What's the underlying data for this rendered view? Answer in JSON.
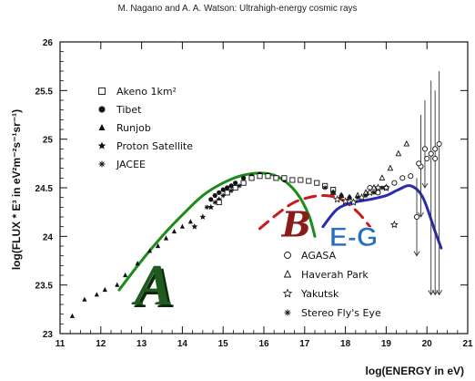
{
  "header": {
    "text": "M. Nagano and A. A. Watson:  Ultrahigh-energy cosmic rays"
  },
  "chart_data": {
    "type": "scatter",
    "xlabel": "log(ENERGY in eV)",
    "ylabel": "log(FLUX * E³ in eV²m⁻²s⁻¹sr⁻¹)",
    "xlim": [
      11,
      21
    ],
    "ylim": [
      23,
      26
    ],
    "x_ticks": [
      "11",
      "12",
      "13",
      "14",
      "15",
      "16",
      "17",
      "18",
      "19",
      "20",
      "21"
    ],
    "y_ticks": [
      "23",
      "23.5",
      "24",
      "24.5",
      "25",
      "25.5",
      "26"
    ],
    "legend_left": [
      {
        "label": "Akeno 1km²",
        "marker": "open-square"
      },
      {
        "label": "Tibet",
        "marker": "filled-circle"
      },
      {
        "label": "Runjob",
        "marker": "filled-triangle"
      },
      {
        "label": "Proton Satellite",
        "marker": "filled-star"
      },
      {
        "label": "JACEE",
        "marker": "asterisk"
      }
    ],
    "legend_right": [
      {
        "label": "AGASA",
        "marker": "open-circle"
      },
      {
        "label": "Haverah Park",
        "marker": "open-triangle"
      },
      {
        "label": "Yakutsk",
        "marker": "open-star"
      },
      {
        "label": "Stereo Fly's Eye",
        "marker": "asterisk"
      }
    ],
    "series": [
      {
        "name": "Runjob",
        "marker": "filled-triangle",
        "x": [
          11.3,
          11.6,
          11.9,
          12.1,
          12.4,
          12.6,
          12.9,
          13.2,
          13.4,
          13.6,
          13.8,
          14.0,
          14.2
        ],
        "y": [
          23.18,
          23.35,
          23.4,
          23.45,
          23.5,
          23.6,
          23.72,
          23.85,
          23.9,
          23.98,
          24.05,
          24.1,
          24.15
        ]
      },
      {
        "name": "Proton Satellite",
        "marker": "filled-star",
        "x": [
          14.3,
          14.5,
          14.7,
          14.9,
          15.1
        ],
        "y": [
          24.1,
          24.2,
          24.3,
          24.38,
          24.45
        ]
      },
      {
        "name": "Tibet",
        "marker": "filled-circle",
        "x": [
          14.7,
          14.8,
          14.9,
          15.0,
          15.1,
          15.2,
          15.3,
          15.5,
          15.7,
          15.9,
          16.1,
          16.3,
          16.5
        ],
        "y": [
          24.38,
          24.42,
          24.45,
          24.48,
          24.5,
          24.52,
          24.55,
          24.6,
          24.62,
          24.64,
          24.63,
          24.6,
          24.58
        ]
      },
      {
        "name": "Akeno 1km²",
        "marker": "open-square",
        "x": [
          14.9,
          15.1,
          15.3,
          15.5,
          15.7,
          15.9,
          16.1,
          16.3,
          16.5,
          16.7,
          16.9,
          17.1,
          17.3,
          17.5,
          17.7
        ],
        "y": [
          24.35,
          24.45,
          24.5,
          24.55,
          24.6,
          24.62,
          24.62,
          24.6,
          24.6,
          24.58,
          24.58,
          24.57,
          24.55,
          24.52,
          24.48
        ]
      },
      {
        "name": "JACEE",
        "marker": "asterisk",
        "x": [
          14.6,
          14.8,
          15.0,
          15.2,
          15.4
        ],
        "y": [
          24.3,
          24.35,
          24.42,
          24.47,
          24.52
        ]
      },
      {
        "name": "AGASA",
        "marker": "open-circle",
        "x": [
          18.6,
          18.8,
          19.0,
          19.2,
          19.4,
          19.6,
          19.8,
          20.0,
          20.2
        ],
        "y": [
          24.5,
          24.45,
          24.5,
          24.55,
          24.6,
          24.62,
          24.75,
          24.8,
          24.9
        ]
      },
      {
        "name": "Haverah Park",
        "marker": "open-triangle",
        "x": [
          17.7,
          17.9,
          18.1,
          18.3,
          18.5,
          18.7,
          18.9,
          19.1,
          19.3,
          19.5
        ],
        "y": [
          24.45,
          24.42,
          24.4,
          24.42,
          24.45,
          24.5,
          24.6,
          24.7,
          24.85,
          24.95
        ]
      },
      {
        "name": "Yakutsk",
        "marker": "open-star",
        "x": [
          17.8,
          18.0,
          18.2,
          18.4,
          18.6,
          18.8,
          19.0,
          19.2
        ],
        "y": [
          24.38,
          24.36,
          24.35,
          24.4,
          24.45,
          24.5,
          24.5,
          24.12
        ]
      },
      {
        "name": "Stereo Fly's Eye",
        "marker": "asterisk",
        "x": [
          17.5,
          17.7,
          17.9,
          18.1,
          18.3,
          18.5,
          18.7,
          18.9
        ],
        "y": [
          24.5,
          24.45,
          24.42,
          24.4,
          24.4,
          24.42,
          24.45,
          24.5
        ]
      }
    ],
    "curves": [
      {
        "color": "#1a8c1a",
        "style": "solid",
        "x": [
          12.45,
          13.0,
          13.5,
          14.0,
          14.5,
          15.0,
          15.5,
          16.0,
          16.4,
          16.8,
          17.1,
          17.25
        ],
        "y": [
          23.45,
          23.75,
          24.0,
          24.22,
          24.42,
          24.55,
          24.63,
          24.65,
          24.6,
          24.45,
          24.22,
          24.0
        ]
      },
      {
        "color": "#cc1a1a",
        "style": "dashed",
        "x": [
          15.9,
          16.3,
          16.7,
          17.1,
          17.5,
          17.9,
          18.3,
          18.6
        ],
        "y": [
          24.08,
          24.22,
          24.34,
          24.4,
          24.42,
          24.38,
          24.25,
          24.1
        ]
      },
      {
        "color": "#2b2bb0",
        "style": "solid",
        "x": [
          17.45,
          17.8,
          18.2,
          18.6,
          19.0,
          19.3,
          19.6,
          19.9,
          20.2,
          20.35
        ],
        "y": [
          24.1,
          24.28,
          24.35,
          24.38,
          24.42,
          24.48,
          24.52,
          24.4,
          24.05,
          23.88
        ]
      }
    ],
    "errorbars": [
      {
        "x": 19.85,
        "y": 24.72,
        "ymin": 24.2,
        "ymax": 25.25
      },
      {
        "x": 19.95,
        "y": 24.9,
        "ymin": 24.5,
        "ymax": 25.4
      },
      {
        "x": 20.1,
        "y": 24.85,
        "ymin": 23.4,
        "ymax": 25.6
      },
      {
        "x": 20.2,
        "y": 24.8,
        "ymin": 23.4,
        "ymax": 25.5
      },
      {
        "x": 20.3,
        "y": 24.95,
        "ymin": 23.4,
        "ymax": 25.7
      },
      {
        "x": 19.75,
        "y": 24.2,
        "ymin": 23.8,
        "ymax": 24.6
      }
    ],
    "annotations": [
      {
        "text": "B",
        "x": 16.8,
        "y": 24.0,
        "color": "#8b1a1a"
      },
      {
        "text": "E-G",
        "x": 18.2,
        "y": 23.9,
        "color": "#2a6fbf"
      },
      {
        "text": "A",
        "x": 13.3,
        "y": 23.3,
        "color": "#1f5a1f"
      }
    ]
  }
}
